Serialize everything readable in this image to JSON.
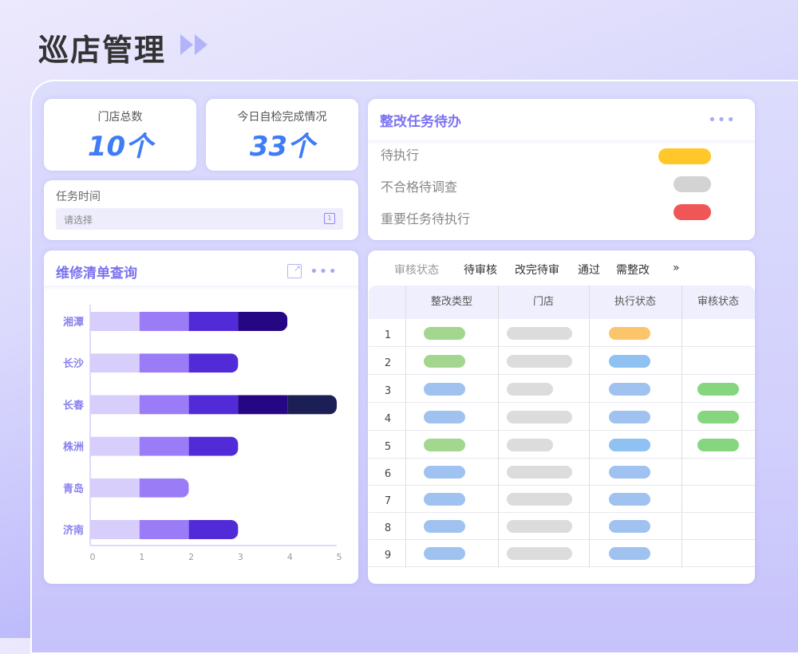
{
  "page": {
    "title": "巡店管理",
    "title_icon": "double-play-arrows-icon"
  },
  "kpis": [
    {
      "label": "门店总数",
      "value": "10个"
    },
    {
      "label": "今日自检完成情况",
      "value": "33个"
    }
  ],
  "task_time": {
    "label": "任务时间",
    "placeholder": "请选择",
    "icon": "calendar-icon"
  },
  "todo": {
    "title": "整改任务待办",
    "more": "•••",
    "items": [
      {
        "label": "待执行",
        "color": "#ffc72a"
      },
      {
        "label": "不合格待调查",
        "color": "#d3d3d3"
      },
      {
        "label": "重要任务待执行",
        "color": "#f05656"
      }
    ]
  },
  "repair": {
    "title": "维修清单查询",
    "more": "•••",
    "export_icon": "share-export-icon"
  },
  "chart_data": {
    "type": "bar",
    "orientation": "horizontal",
    "stacked": true,
    "categories": [
      "湘潭",
      "长沙",
      "长春",
      "株洲",
      "青岛",
      "济南"
    ],
    "segment_colors": [
      "#d8cefb",
      "#9a7cf6",
      "#512bd7",
      "#260783",
      "#1b1f55"
    ],
    "values": [
      4,
      3,
      5,
      3,
      2,
      3
    ],
    "xlim": [
      0,
      5
    ],
    "xticks": [
      "0",
      "1",
      "2",
      "3",
      "4",
      "5"
    ],
    "grid": false
  },
  "audit": {
    "filter_label": "审核状态",
    "filters": [
      "待审核",
      "改完待审",
      "通过",
      "需整改"
    ],
    "more": "»",
    "columns": [
      "整改类型",
      "门店",
      "执行状态",
      "审核状态"
    ],
    "rows": [
      {
        "n": "1",
        "type": "#a3d68e",
        "store": "long",
        "exec": "#fcc56b",
        "audit": ""
      },
      {
        "n": "2",
        "type": "#a3d68e",
        "store": "long",
        "exec": "#8fc1f3",
        "audit": ""
      },
      {
        "n": "3",
        "type": "#9fc2f0",
        "store": "short",
        "exec": "#9fc2f0",
        "audit": "#86d67f"
      },
      {
        "n": "4",
        "type": "#9fc2f0",
        "store": "long",
        "exec": "#9fc2f0",
        "audit": "#86d67f"
      },
      {
        "n": "5",
        "type": "#a3d68e",
        "store": "short",
        "exec": "#8fc1f3",
        "audit": "#86d67f"
      },
      {
        "n": "6",
        "type": "#9fc2f0",
        "store": "long",
        "exec": "#9fc2f0",
        "audit": ""
      },
      {
        "n": "7",
        "type": "#9fc2f0",
        "store": "long",
        "exec": "#9fc2f0",
        "audit": ""
      },
      {
        "n": "8",
        "type": "#9fc2f0",
        "store": "long",
        "exec": "#9fc2f0",
        "audit": ""
      },
      {
        "n": "9",
        "type": "#9fc2f0",
        "store": "long",
        "exec": "#9fc2f0",
        "audit": ""
      }
    ]
  }
}
